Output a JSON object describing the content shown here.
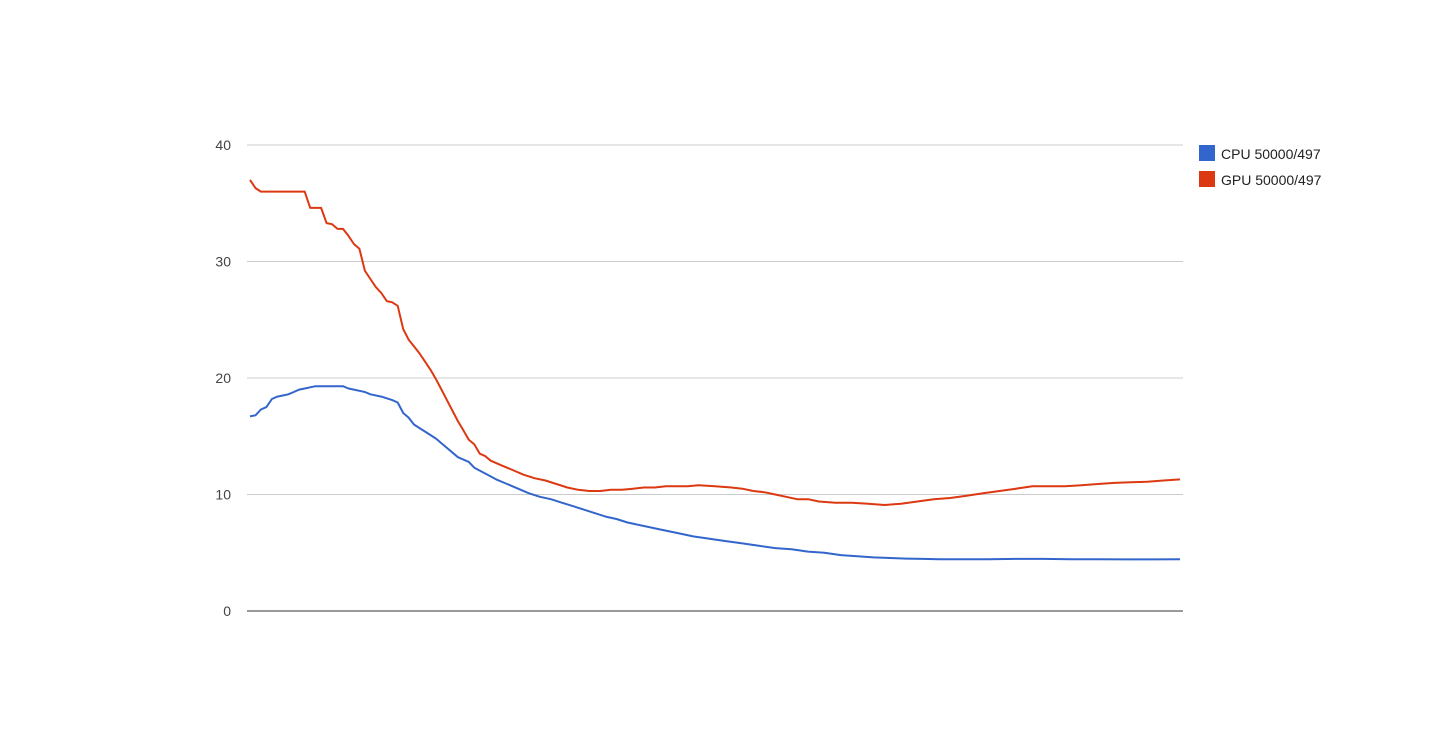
{
  "chart_data": {
    "type": "line",
    "title": "",
    "xlabel": "",
    "ylabel": "",
    "ylim": [
      0,
      40
    ],
    "yticks": [
      0,
      10,
      20,
      30,
      40
    ],
    "grid": true,
    "legend_position": "right",
    "x_count": 171,
    "series": [
      {
        "name": "CPU 50000/497",
        "color": "#3366cc",
        "points": [
          [
            0,
            16.7
          ],
          [
            1,
            16.8
          ],
          [
            2,
            17.3
          ],
          [
            3,
            17.5
          ],
          [
            4,
            18.2
          ],
          [
            5,
            18.4
          ],
          [
            6,
            18.5
          ],
          [
            7,
            18.6
          ],
          [
            8,
            18.8
          ],
          [
            9,
            19.0
          ],
          [
            10,
            19.1
          ],
          [
            11,
            19.2
          ],
          [
            12,
            19.3
          ],
          [
            15,
            19.3
          ],
          [
            17,
            19.3
          ],
          [
            18,
            19.1
          ],
          [
            19,
            19.0
          ],
          [
            20,
            18.9
          ],
          [
            21,
            18.8
          ],
          [
            22,
            18.6
          ],
          [
            24,
            18.4
          ],
          [
            26,
            18.1
          ],
          [
            27,
            17.9
          ],
          [
            28,
            17.0
          ],
          [
            29,
            16.6
          ],
          [
            30,
            16.0
          ],
          [
            32,
            15.4
          ],
          [
            34,
            14.8
          ],
          [
            36,
            14.0
          ],
          [
            38,
            13.2
          ],
          [
            40,
            12.8
          ],
          [
            41,
            12.3
          ],
          [
            43,
            11.8
          ],
          [
            45,
            11.3
          ],
          [
            47,
            10.9
          ],
          [
            49,
            10.5
          ],
          [
            51,
            10.1
          ],
          [
            53,
            9.8
          ],
          [
            55,
            9.6
          ],
          [
            57,
            9.3
          ],
          [
            59,
            9.0
          ],
          [
            61,
            8.7
          ],
          [
            63,
            8.4
          ],
          [
            65,
            8.1
          ],
          [
            67,
            7.9
          ],
          [
            69,
            7.6
          ],
          [
            72,
            7.3
          ],
          [
            75,
            7.0
          ],
          [
            78,
            6.7
          ],
          [
            81,
            6.4
          ],
          [
            84,
            6.2
          ],
          [
            87,
            6.0
          ],
          [
            90,
            5.8
          ],
          [
            93,
            5.6
          ],
          [
            96,
            5.4
          ],
          [
            99,
            5.3
          ],
          [
            102,
            5.1
          ],
          [
            105,
            5.0
          ],
          [
            108,
            4.8
          ],
          [
            111,
            4.7
          ],
          [
            114,
            4.6
          ],
          [
            117,
            4.55
          ],
          [
            120,
            4.5
          ],
          [
            123,
            4.47
          ],
          [
            126,
            4.45
          ],
          [
            130,
            4.45
          ],
          [
            135,
            4.45
          ],
          [
            140,
            4.47
          ],
          [
            145,
            4.47
          ],
          [
            150,
            4.45
          ],
          [
            155,
            4.45
          ],
          [
            160,
            4.43
          ],
          [
            165,
            4.43
          ],
          [
            170,
            4.45
          ]
        ]
      },
      {
        "name": "GPU 50000/497",
        "color": "#dc3912",
        "points": [
          [
            0,
            37.0
          ],
          [
            1,
            36.3
          ],
          [
            2,
            36.0
          ],
          [
            5,
            36.0
          ],
          [
            8,
            36.0
          ],
          [
            10,
            36.0
          ],
          [
            11,
            34.6
          ],
          [
            12,
            34.6
          ],
          [
            13,
            34.6
          ],
          [
            14,
            33.3
          ],
          [
            15,
            33.2
          ],
          [
            16,
            32.8
          ],
          [
            17,
            32.8
          ],
          [
            18,
            32.2
          ],
          [
            19,
            31.5
          ],
          [
            20,
            31.1
          ],
          [
            21,
            29.2
          ],
          [
            22,
            28.5
          ],
          [
            23,
            27.8
          ],
          [
            24,
            27.3
          ],
          [
            25,
            26.6
          ],
          [
            26,
            26.5
          ],
          [
            27,
            26.2
          ],
          [
            28,
            24.2
          ],
          [
            29,
            23.3
          ],
          [
            30,
            22.7
          ],
          [
            31,
            22.1
          ],
          [
            32,
            21.4
          ],
          [
            33,
            20.7
          ],
          [
            34,
            19.9
          ],
          [
            35,
            19.0
          ],
          [
            36,
            18.1
          ],
          [
            37,
            17.2
          ],
          [
            38,
            16.3
          ],
          [
            39,
            15.5
          ],
          [
            40,
            14.7
          ],
          [
            41,
            14.3
          ],
          [
            42,
            13.5
          ],
          [
            43,
            13.3
          ],
          [
            44,
            12.9
          ],
          [
            46,
            12.5
          ],
          [
            48,
            12.1
          ],
          [
            50,
            11.7
          ],
          [
            52,
            11.4
          ],
          [
            54,
            11.2
          ],
          [
            56,
            10.9
          ],
          [
            58,
            10.6
          ],
          [
            60,
            10.4
          ],
          [
            62,
            10.3
          ],
          [
            64,
            10.3
          ],
          [
            66,
            10.4
          ],
          [
            68,
            10.4
          ],
          [
            70,
            10.5
          ],
          [
            72,
            10.6
          ],
          [
            74,
            10.6
          ],
          [
            76,
            10.7
          ],
          [
            78,
            10.7
          ],
          [
            80,
            10.7
          ],
          [
            82,
            10.8
          ],
          [
            85,
            10.7
          ],
          [
            88,
            10.6
          ],
          [
            90,
            10.5
          ],
          [
            92,
            10.3
          ],
          [
            94,
            10.2
          ],
          [
            96,
            10.0
          ],
          [
            98,
            9.8
          ],
          [
            100,
            9.6
          ],
          [
            102,
            9.6
          ],
          [
            104,
            9.4
          ],
          [
            107,
            9.3
          ],
          [
            110,
            9.3
          ],
          [
            113,
            9.2
          ],
          [
            116,
            9.1
          ],
          [
            119,
            9.2
          ],
          [
            122,
            9.4
          ],
          [
            125,
            9.6
          ],
          [
            128,
            9.7
          ],
          [
            131,
            9.9
          ],
          [
            134,
            10.1
          ],
          [
            137,
            10.3
          ],
          [
            140,
            10.5
          ],
          [
            143,
            10.7
          ],
          [
            146,
            10.7
          ],
          [
            149,
            10.7
          ],
          [
            152,
            10.8
          ],
          [
            155,
            10.9
          ],
          [
            158,
            11.0
          ],
          [
            161,
            11.05
          ],
          [
            164,
            11.1
          ],
          [
            167,
            11.2
          ],
          [
            170,
            11.3
          ]
        ]
      }
    ]
  }
}
